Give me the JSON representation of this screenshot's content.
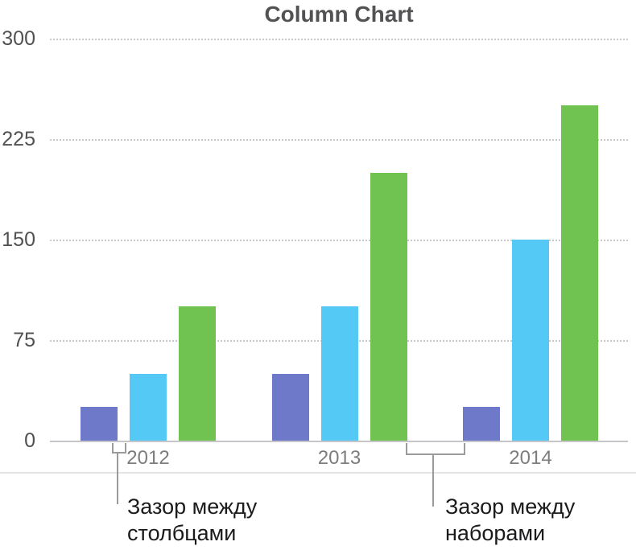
{
  "chart_data": {
    "type": "bar",
    "title": "Column Chart",
    "categories": [
      "2012",
      "2013",
      "2014"
    ],
    "series": [
      {
        "color": "#6f79ca",
        "values": [
          25,
          50,
          25
        ]
      },
      {
        "color": "#55c9f6",
        "values": [
          50,
          100,
          150
        ]
      },
      {
        "color": "#70c350",
        "values": [
          100,
          200,
          250
        ]
      }
    ],
    "ylim": [
      0,
      300
    ],
    "yticks": [
      0,
      75,
      150,
      225,
      300
    ],
    "grid": "horizontal dotted",
    "legend": "none"
  },
  "annotations": {
    "column_gap": {
      "text": "Зазор между\nстолбцами"
    },
    "set_gap": {
      "text": "Зазор между\nнаборами"
    }
  },
  "colors": {
    "grid_dotted": "#c9c9c9",
    "axis_line": "#c6c6ca",
    "title_text": "#525254",
    "y_label_text": "#515153",
    "x_label_text": "#7d7d7f",
    "annotation_text": "#1b1b1d",
    "callout_line": "#9b9b9b"
  }
}
